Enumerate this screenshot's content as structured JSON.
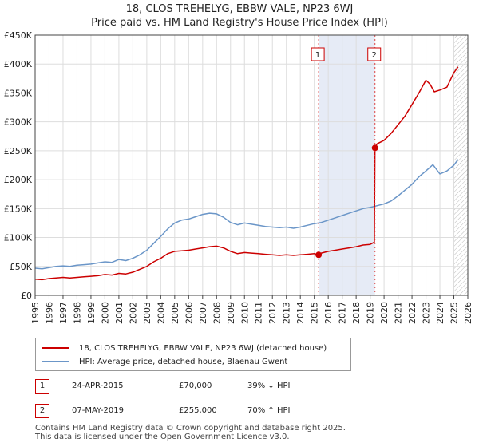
{
  "chart_data": {
    "type": "line",
    "title": "18, CLOS TREHELYG, EBBW VALE, NP23 6WJ",
    "subtitle": "Price paid vs. HM Land Registry's House Price Index (HPI)",
    "xlabel": "",
    "ylabel": "",
    "xlim": [
      1995,
      2026
    ],
    "ylim": [
      0,
      450000
    ],
    "y_ticks": [
      0,
      50000,
      100000,
      150000,
      200000,
      250000,
      300000,
      350000,
      400000,
      450000
    ],
    "y_tick_labels": [
      "£0",
      "£50K",
      "£100K",
      "£150K",
      "£200K",
      "£250K",
      "£300K",
      "£350K",
      "£400K",
      "£450K"
    ],
    "x_ticks": [
      "1995",
      "1996",
      "1997",
      "1998",
      "1999",
      "2000",
      "2001",
      "2002",
      "2003",
      "2004",
      "2005",
      "2006",
      "2007",
      "2008",
      "2009",
      "2010",
      "2011",
      "2012",
      "2013",
      "2014",
      "2015",
      "2016",
      "2017",
      "2018",
      "2019",
      "2020",
      "2021",
      "2022",
      "2023",
      "2024",
      "2025",
      "2026"
    ],
    "grid": true,
    "shaded_range": [
      2015.31,
      2019.35
    ],
    "hatched_from": 2025.0,
    "colors": {
      "property": "#cc0000",
      "hpi": "#6b96c8"
    },
    "series": [
      {
        "name": "18, CLOS TREHELYG, EBBW VALE, NP23 6WJ (detached house)",
        "color": "#cc0000",
        "x": [
          1995.0,
          1995.5,
          1996.0,
          1996.5,
          1997.0,
          1997.5,
          1998.0,
          1998.5,
          1999.0,
          1999.5,
          2000.0,
          2000.5,
          2001.0,
          2001.5,
          2002.0,
          2002.5,
          2003.0,
          2003.5,
          2004.0,
          2004.5,
          2005.0,
          2005.5,
          2006.0,
          2006.5,
          2007.0,
          2007.5,
          2008.0,
          2008.5,
          2009.0,
          2009.5,
          2010.0,
          2010.5,
          2011.0,
          2011.5,
          2012.0,
          2012.5,
          2013.0,
          2013.5,
          2014.0,
          2014.5,
          2015.0,
          2015.31,
          2015.5,
          2016.0,
          2016.5,
          2017.0,
          2017.5,
          2018.0,
          2018.5,
          2019.0,
          2019.3,
          2019.35,
          2019.5,
          2020.0,
          2020.5,
          2021.0,
          2021.5,
          2022.0,
          2022.5,
          2023.0,
          2023.3,
          2023.6,
          2024.0,
          2024.5,
          2025.0,
          2025.3
        ],
        "values": [
          28000,
          27000,
          29000,
          30000,
          31000,
          30000,
          31000,
          32000,
          33000,
          34000,
          36000,
          35000,
          38000,
          37000,
          40000,
          45000,
          50000,
          58000,
          64000,
          72000,
          76000,
          77000,
          78000,
          80000,
          82000,
          84000,
          85000,
          82000,
          76000,
          72000,
          74000,
          73000,
          72000,
          71000,
          70000,
          69000,
          70000,
          69000,
          70000,
          71000,
          72000,
          70000,
          73000,
          76000,
          78000,
          80000,
          82000,
          84000,
          87000,
          88000,
          92000,
          255000,
          262000,
          268000,
          280000,
          295000,
          310000,
          330000,
          350000,
          372000,
          365000,
          352000,
          355000,
          360000,
          385000,
          395000
        ]
      },
      {
        "name": "HPI: Average price, detached house, Blaenau Gwent",
        "color": "#6b96c8",
        "x": [
          1995.0,
          1995.5,
          1996.0,
          1996.5,
          1997.0,
          1997.5,
          1998.0,
          1998.5,
          1999.0,
          1999.5,
          2000.0,
          2000.5,
          2001.0,
          2001.5,
          2002.0,
          2002.5,
          2003.0,
          2003.5,
          2004.0,
          2004.5,
          2005.0,
          2005.5,
          2006.0,
          2006.5,
          2007.0,
          2007.5,
          2008.0,
          2008.5,
          2009.0,
          2009.5,
          2010.0,
          2010.5,
          2011.0,
          2011.5,
          2012.0,
          2012.5,
          2013.0,
          2013.5,
          2014.0,
          2014.5,
          2015.0,
          2015.5,
          2016.0,
          2016.5,
          2017.0,
          2017.5,
          2018.0,
          2018.5,
          2019.0,
          2019.5,
          2020.0,
          2020.5,
          2021.0,
          2021.5,
          2022.0,
          2022.5,
          2023.0,
          2023.5,
          2024.0,
          2024.5,
          2025.0,
          2025.3
        ],
        "values": [
          47000,
          46000,
          48000,
          50000,
          51000,
          50000,
          52000,
          53000,
          54000,
          56000,
          58000,
          57000,
          62000,
          60000,
          64000,
          70000,
          78000,
          90000,
          102000,
          115000,
          125000,
          130000,
          132000,
          136000,
          140000,
          142000,
          141000,
          135000,
          126000,
          122000,
          125000,
          123000,
          121000,
          119000,
          118000,
          117000,
          118000,
          116000,
          118000,
          121000,
          124000,
          126000,
          130000,
          134000,
          138000,
          142000,
          146000,
          150000,
          152000,
          155000,
          158000,
          163000,
          172000,
          182000,
          192000,
          205000,
          215000,
          226000,
          210000,
          215000,
          225000,
          235000
        ]
      }
    ],
    "markers": [
      {
        "label": "1",
        "x": 2015.31,
        "y": 70000
      },
      {
        "label": "2",
        "x": 2019.35,
        "y": 255000
      }
    ]
  },
  "legend": {
    "property_label": "18, CLOS TREHELYG, EBBW VALE, NP23 6WJ (detached house)",
    "hpi_label": "HPI: Average price, detached house, Blaenau Gwent"
  },
  "transactions": [
    {
      "num": "1",
      "date": "24-APR-2015",
      "price": "£70,000",
      "hpi": "39% ↓ HPI"
    },
    {
      "num": "2",
      "date": "07-MAY-2019",
      "price": "£255,000",
      "hpi": "70% ↑ HPI"
    }
  ],
  "footer": {
    "line1": "Contains HM Land Registry data © Crown copyright and database right 2025.",
    "line2": "This data is licensed under the Open Government Licence v3.0."
  }
}
